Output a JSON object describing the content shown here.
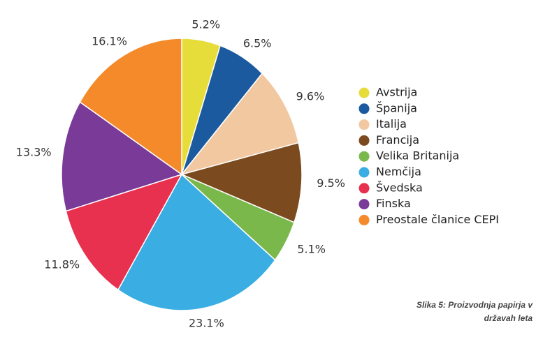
{
  "chart_data": {
    "type": "pie",
    "categories": [
      "Avstrija",
      "Španija",
      "Italija",
      "Francija",
      "Velika Britanija",
      "Nemčija",
      "Švedska",
      "Finska",
      "Preostale članice CEPI"
    ],
    "values": [
      5.2,
      6.5,
      9.6,
      9.5,
      5.1,
      23.1,
      11.8,
      13.3,
      16.1
    ],
    "value_labels": [
      "5.2%",
      "6.5%",
      "9.6%",
      "9.5%",
      "5.1%",
      "23.1%",
      "11.8%",
      "13.3%",
      "16.1%"
    ],
    "colors": [
      "#e6dc3a",
      "#1b5a9e",
      "#f1c8a0",
      "#7b4a1f",
      "#7bb84b",
      "#3aaee2",
      "#e8304f",
      "#7a3a98",
      "#f58a2b"
    ],
    "legend": "right",
    "caption": [
      "Slika 5: Proizvodnja papirja v",
      "državah leta"
    ]
  }
}
